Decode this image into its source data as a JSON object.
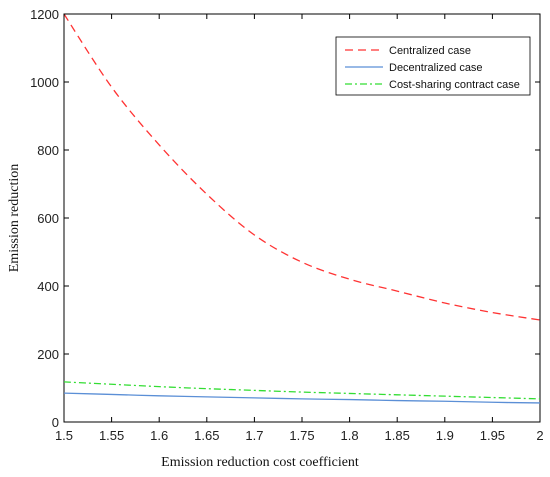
{
  "chart_data": {
    "type": "line",
    "title": "",
    "xlabel": "Emission reduction cost coefficient",
    "ylabel": "Emission reduction",
    "xlim": [
      1.5,
      2.0
    ],
    "ylim": [
      0,
      1200
    ],
    "xticks": [
      1.5,
      1.55,
      1.6,
      1.65,
      1.7,
      1.75,
      1.8,
      1.85,
      1.9,
      1.95,
      2
    ],
    "xtick_labels": [
      "1.5",
      "1.55",
      "1.6",
      "1.65",
      "1.7",
      "1.75",
      "1.8",
      "1.85",
      "1.9",
      "1.95",
      "2"
    ],
    "yticks": [
      0,
      200,
      400,
      600,
      800,
      1000,
      1200
    ],
    "ytick_labels": [
      "0",
      "200",
      "400",
      "600",
      "800",
      "1000",
      "1200"
    ],
    "grid": false,
    "legend_position": "top-right",
    "x": [
      1.5,
      1.55,
      1.6,
      1.65,
      1.7,
      1.75,
      1.8,
      1.85,
      1.9,
      1.95,
      2.0
    ],
    "series": [
      {
        "name": "Centralized case",
        "color": "#ff3333",
        "dash": "dashed",
        "values": [
          1200,
          985,
          815,
          670,
          550,
          470,
          420,
          385,
          350,
          322,
          300
        ]
      },
      {
        "name": "Decentralized case",
        "color": "#5b8fd6",
        "dash": "solid",
        "values": [
          85,
          81,
          77,
          74,
          71,
          68,
          66,
          63,
          61,
          58,
          56
        ]
      },
      {
        "name": "Cost-sharing contract case",
        "color": "#33dd33",
        "dash": "dashdot",
        "values": [
          118,
          111,
          104,
          98,
          93,
          88,
          84,
          80,
          76,
          72,
          68
        ]
      }
    ]
  }
}
